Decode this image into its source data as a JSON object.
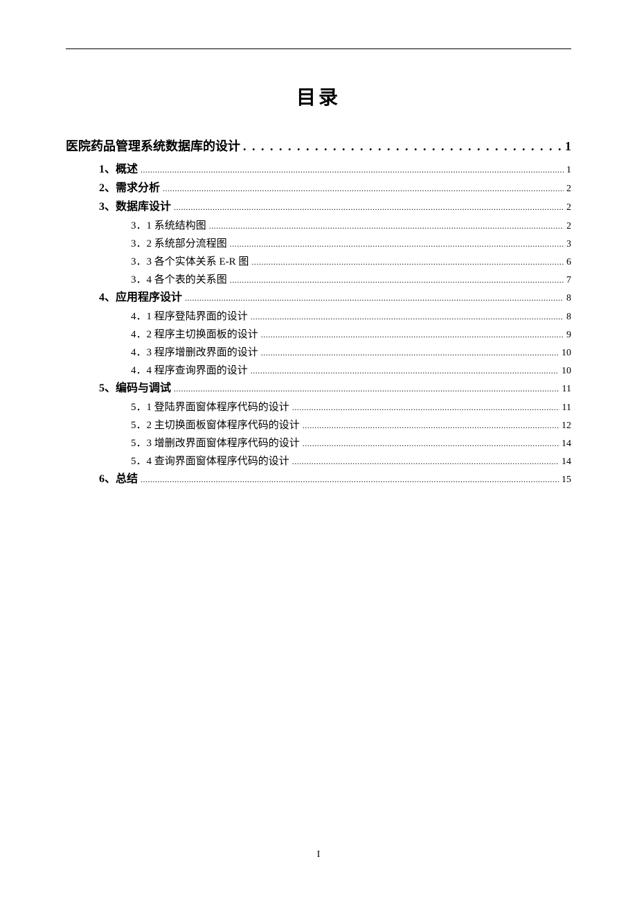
{
  "title": "目录",
  "page_number": "I",
  "colors": {
    "text": "#000000",
    "background": "#ffffff"
  },
  "typography": {
    "title_fontsize": 28,
    "level0_fontsize": 18,
    "level1_fontsize": 16,
    "level2_fontsize": 15,
    "font_family": "SimSun"
  },
  "toc": [
    {
      "level": 0,
      "label": "医院药品管理系统数据库的设计",
      "page": "1",
      "leader": "dots-large"
    },
    {
      "level": 1,
      "label": "1、概述",
      "page": "1",
      "leader": "dots-small"
    },
    {
      "level": 1,
      "label": "2、需求分析",
      "page": "2",
      "leader": "dots-small"
    },
    {
      "level": 1,
      "label": "3、数据库设计",
      "page": "2",
      "leader": "dots-small"
    },
    {
      "level": 2,
      "label": "3．1 系统结构图",
      "page": "2",
      "leader": "dots-small"
    },
    {
      "level": 2,
      "label": "3．2 系统部分流程图",
      "page": "3",
      "leader": "dots-small"
    },
    {
      "level": 2,
      "label": "3．3 各个实体关系 E-R 图",
      "page": "6",
      "leader": "dots-small"
    },
    {
      "level": 2,
      "label": "3．4 各个表的关系图",
      "page": "7",
      "leader": "dots-small"
    },
    {
      "level": 1,
      "label": "4、应用程序设计",
      "page": "8",
      "leader": "dots-small"
    },
    {
      "level": 2,
      "label": "4．1 程序登陆界面的设计",
      "page": "8",
      "leader": "dots-small"
    },
    {
      "level": 2,
      "label": "4．2 程序主切换面板的设计",
      "page": "9",
      "leader": "dots-small"
    },
    {
      "level": 2,
      "label": "4．3 程序增删改界面的设计",
      "page": "10",
      "leader": "dots-small"
    },
    {
      "level": 2,
      "label": "4．4 程序查询界面的设计",
      "page": "10",
      "leader": "dots-small"
    },
    {
      "level": 1,
      "label": "5、编码与调试",
      "page": "11",
      "leader": "dots-small"
    },
    {
      "level": 2,
      "label": "5．1 登陆界面窗体程序代码的设计",
      "page": "11",
      "leader": "dots-small"
    },
    {
      "level": 2,
      "label": "5．2 主切换面板窗体程序代码的设计",
      "page": "12",
      "leader": "dots-small"
    },
    {
      "level": 2,
      "label": "5．3 增删改界面窗体程序代码的设计",
      "page": "14",
      "leader": "dots-small"
    },
    {
      "level": 2,
      "label": "5．4 查询界面窗体程序代码的设计",
      "page": "14",
      "leader": "dots-small"
    },
    {
      "level": 1,
      "label": "6、总结",
      "page": "15",
      "leader": "dots-small"
    }
  ]
}
